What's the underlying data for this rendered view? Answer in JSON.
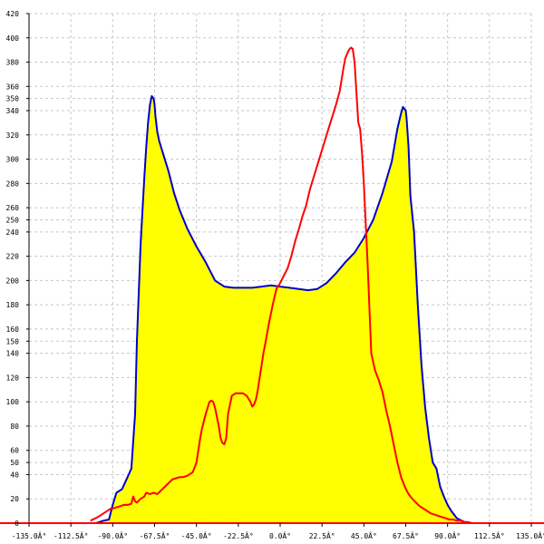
{
  "chart_data": {
    "type": "area",
    "title": "",
    "xlabel": "",
    "ylabel": "",
    "xlim": [
      -135,
      135
    ],
    "ylim": [
      0,
      420
    ],
    "grid": true,
    "x_ticks": [
      -135,
      -112.5,
      -90,
      -67.5,
      -45,
      -22.5,
      0,
      22.5,
      45,
      67.5,
      90,
      112.5,
      135
    ],
    "x_tick_labels": [
      "-135.0Â°",
      "-112.5Â°",
      "-90.0Â°",
      "-67.5Â°",
      "-45.0Â°",
      "-22.5Â°",
      "0.0Â°",
      "22.5Â°",
      "45.0Â°",
      "67.5Â°",
      "90.0Â°",
      "112.5Â°",
      "135.0Â°"
    ],
    "y_ticks": [
      20,
      40,
      50,
      60,
      80,
      100,
      120,
      140,
      150,
      160,
      180,
      200,
      220,
      240,
      250,
      260,
      280,
      300,
      320,
      340,
      350,
      360,
      380,
      400,
      420
    ],
    "y_tick_labels": [
      "20",
      "40",
      "50",
      "60",
      "80",
      "100",
      "120",
      "140",
      "150",
      "160",
      "180",
      "200",
      "220",
      "240",
      "250",
      "260",
      "280",
      "300",
      "320",
      "340",
      "350",
      "360",
      "380",
      "400",
      "420"
    ],
    "series": [
      {
        "color": "#0000cc",
        "fill": "#ffff00",
        "x": [
          -99,
          -95,
          -92,
          -90,
          -88,
          -85,
          -82,
          -80,
          -78,
          -77,
          -75,
          -73,
          -72,
          -71,
          -70,
          -69,
          -68,
          -67.5,
          -67,
          -66,
          -65,
          -63,
          -60,
          -57,
          -54,
          -50,
          -45,
          -40,
          -35,
          -30,
          -25,
          -20,
          -15,
          -10,
          -5,
          0,
          5,
          10,
          15,
          20,
          25,
          30,
          35,
          40,
          45,
          50,
          55,
          60,
          63,
          65,
          66,
          67.5,
          68,
          69,
          70,
          72,
          74,
          76,
          78,
          80,
          82,
          84,
          86,
          88,
          90,
          92,
          95,
          99,
          103
        ],
        "y": [
          0,
          2,
          3,
          15,
          25,
          28,
          38,
          45,
          90,
          150,
          230,
          285,
          310,
          330,
          345,
          352,
          350,
          345,
          335,
          322,
          315,
          305,
          290,
          272,
          258,
          243,
          228,
          215,
          200,
          195,
          194,
          194,
          194,
          195,
          196,
          195,
          194,
          193,
          192,
          193,
          198,
          206,
          215,
          223,
          235,
          250,
          272,
          298,
          325,
          338,
          343,
          340,
          333,
          310,
          270,
          240,
          180,
          130,
          95,
          70,
          50,
          45,
          30,
          22,
          15,
          10,
          4,
          1,
          0
        ]
      },
      {
        "color": "#ff0000",
        "x": [
          -102,
          -98,
          -95,
          -93,
          -91,
          -90,
          -88,
          -86,
          -84,
          -82,
          -80,
          -79,
          -78,
          -77,
          -75,
          -73,
          -72,
          -70,
          -68,
          -66,
          -64,
          -62,
          -60,
          -58,
          -56,
          -54,
          -52,
          -50,
          -47,
          -45,
          -43,
          -42,
          -40,
          -38,
          -37,
          -36,
          -35,
          -33,
          -32,
          -31,
          -30,
          -29,
          -28,
          -26,
          -24,
          -22,
          -20,
          -18,
          -16,
          -15,
          -14,
          -13,
          -12,
          -11,
          -10,
          -9,
          -8,
          -6,
          -4,
          -2,
          0,
          2,
          4,
          6,
          8,
          10,
          12,
          14,
          16,
          18,
          20,
          22,
          24,
          26,
          28,
          30,
          32,
          34,
          35,
          36,
          37,
          38,
          39,
          40,
          41,
          42,
          43,
          44,
          45,
          47,
          49,
          51,
          53,
          55,
          57,
          59,
          61,
          63,
          65,
          67,
          69,
          71,
          73,
          75,
          77,
          79,
          81,
          83,
          85,
          87,
          89,
          91,
          93,
          95,
          97,
          99,
          101,
          103,
          106
        ],
        "y": [
          2,
          5,
          8,
          10,
          12,
          12,
          13,
          14,
          15,
          15,
          16,
          22,
          18,
          17,
          20,
          22,
          25,
          24,
          25,
          24,
          27,
          30,
          33,
          36,
          37,
          38,
          38,
          39,
          42,
          50,
          70,
          78,
          90,
          100,
          101,
          100,
          95,
          80,
          70,
          66,
          65,
          70,
          90,
          105,
          107,
          107,
          107,
          105,
          100,
          96,
          98,
          102,
          110,
          120,
          130,
          140,
          148,
          165,
          180,
          193,
          198,
          204,
          210,
          220,
          232,
          242,
          253,
          262,
          275,
          285,
          295,
          305,
          315,
          325,
          335,
          345,
          356,
          375,
          383,
          387,
          390,
          392,
          391,
          380,
          355,
          330,
          325,
          305,
          280,
          215,
          140,
          126,
          118,
          108,
          93,
          80,
          65,
          50,
          38,
          30,
          24,
          20,
          17,
          14,
          12,
          10,
          8,
          7,
          6,
          5,
          4,
          3,
          3,
          2,
          2,
          1,
          1,
          0,
          0
        ]
      }
    ]
  }
}
